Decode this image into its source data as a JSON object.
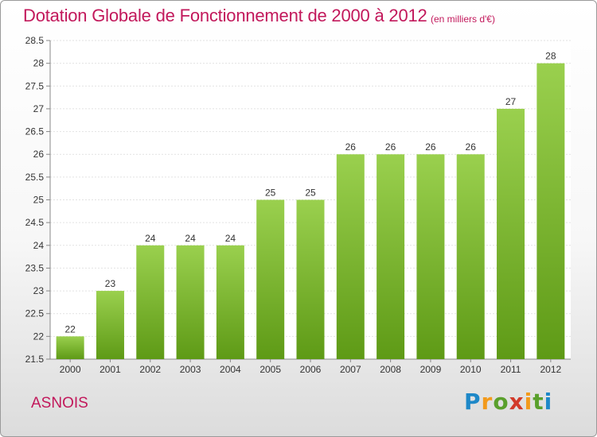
{
  "header": {
    "title": "Dotation Globale de Fonctionnement de 2000 à 2012",
    "subtitle": "(en milliers d'€)"
  },
  "footer": {
    "commune": "ASNOIS",
    "logo": "Proxiti"
  },
  "colors": {
    "bar_top": "#9ad04e",
    "bar_bottom": "#5e9a16",
    "title": "#c2185b"
  },
  "chart_data": {
    "type": "bar",
    "title": "Dotation Globale de Fonctionnement de 2000 à 2012",
    "subtitle": "(en milliers d'€)",
    "categories": [
      "2000",
      "2001",
      "2002",
      "2003",
      "2004",
      "2005",
      "2006",
      "2007",
      "2008",
      "2009",
      "2010",
      "2011",
      "2012"
    ],
    "values": [
      22,
      23,
      24,
      24,
      24,
      25,
      25,
      26,
      26,
      26,
      26,
      27,
      28
    ],
    "ylim": [
      21.5,
      28.5
    ],
    "yticks": [
      "21.5",
      "22",
      "22.5",
      "23",
      "23.5",
      "24",
      "24.5",
      "25",
      "25.5",
      "26",
      "26.5",
      "27",
      "27.5",
      "28",
      "28.5"
    ],
    "grid": true
  }
}
